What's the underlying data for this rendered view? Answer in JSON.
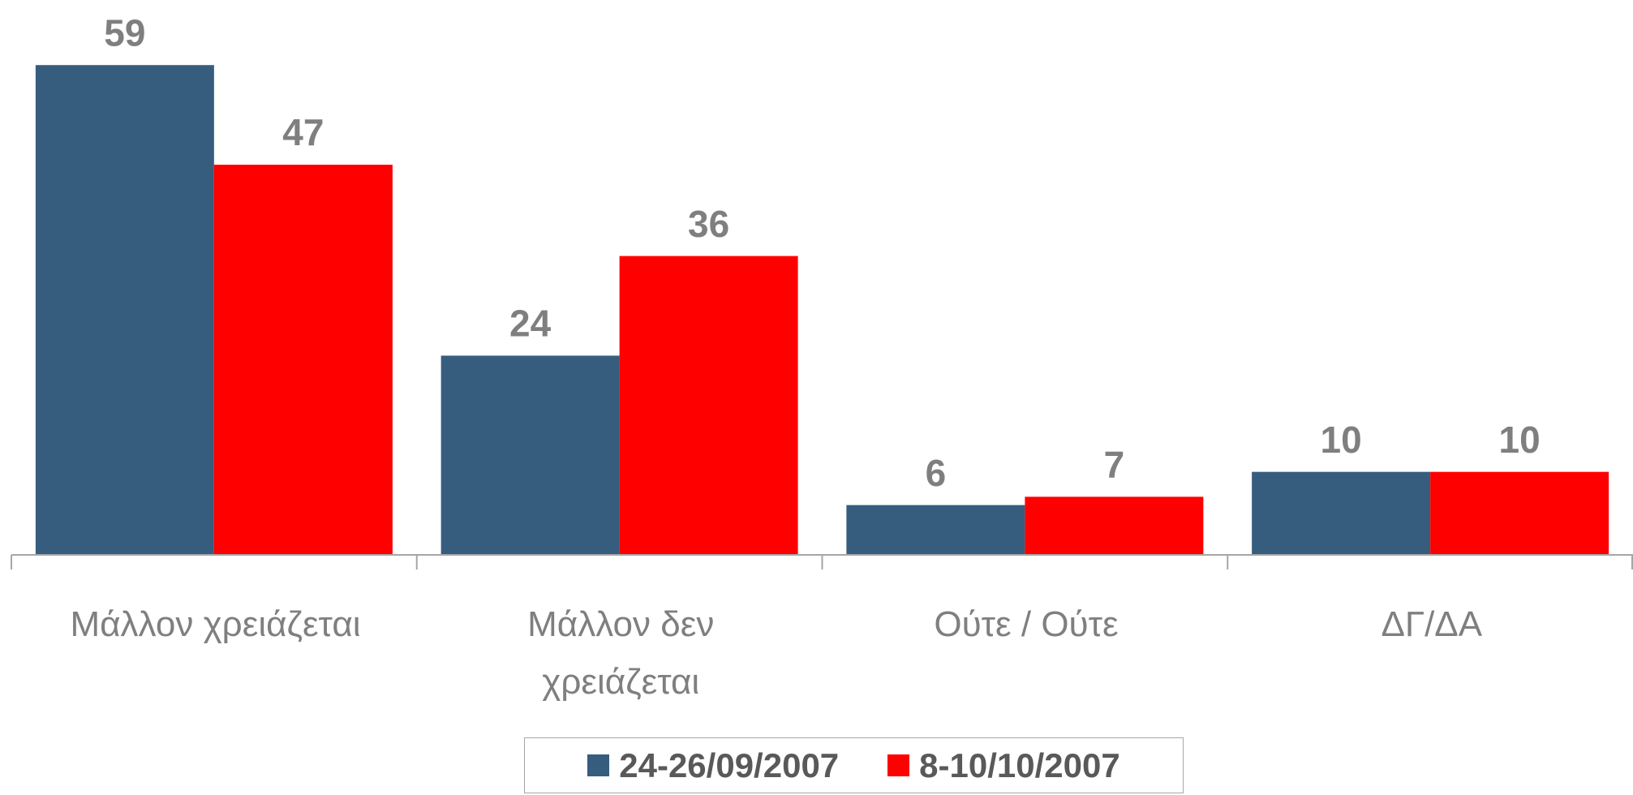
{
  "chart_data": {
    "type": "bar",
    "categories": [
      "Μάλλον χρειάζεται",
      "Μάλλον δεν\nχρειάζεται",
      "Ούτε / Ούτε",
      "ΔΓ/ΔΑ"
    ],
    "series": [
      {
        "name": "24-26/09/2007",
        "color": "#375d7e",
        "values": [
          59,
          24,
          6,
          10
        ]
      },
      {
        "name": "8-10/10/2007",
        "color": "#ff0000",
        "values": [
          47,
          36,
          7,
          10
        ]
      }
    ],
    "ylim": [
      0,
      60
    ],
    "legend": "bottom"
  }
}
